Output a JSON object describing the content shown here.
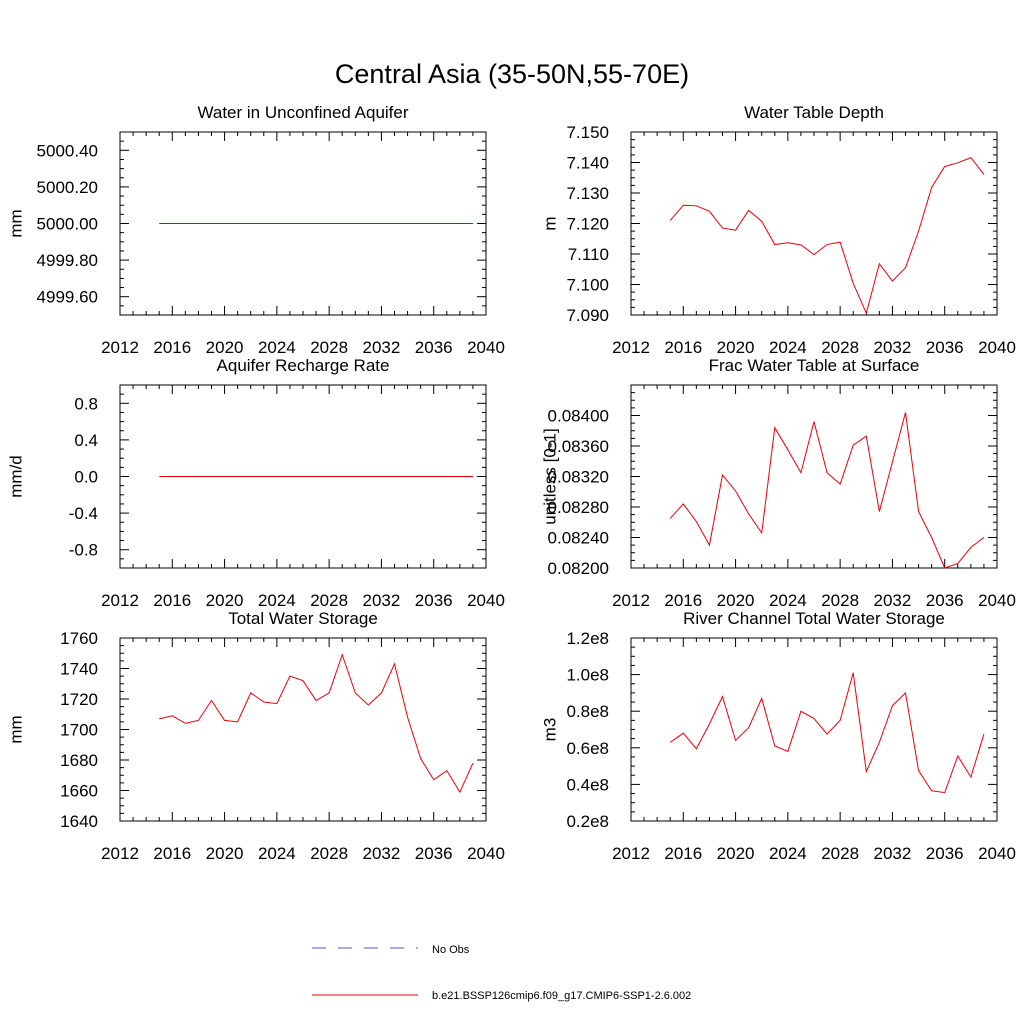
{
  "figure": {
    "title": "Central Asia (35-50N,55-70E)"
  },
  "legend": {
    "obs_label": "No Obs",
    "obs_color": "#5a5ab4",
    "model_label": "b.e21.BSSP126cmip6.f09_g17.CMIP6-SSP1-2.6.002",
    "model_color": "#e8000b"
  },
  "chart_data": [
    {
      "type": "line",
      "title": "Water in Unconfined Aquifer",
      "ylabel": "mm",
      "xlim": [
        2012,
        2040
      ],
      "xticks": [
        2012,
        2016,
        2020,
        2024,
        2028,
        2032,
        2036,
        2040
      ],
      "xtick_labels": [
        "2012",
        "2016",
        "2020",
        "2024",
        "2028",
        "2032",
        "2036",
        "2040"
      ],
      "ylim": [
        4999.5,
        5000.5
      ],
      "yticks": [
        4999.6,
        4999.8,
        5000.0,
        5000.2,
        5000.4
      ],
      "ytick_labels": [
        "4999.60",
        "4999.80",
        "5000.00",
        "5000.20",
        "5000.40"
      ],
      "x": [
        2015,
        2016,
        2017,
        2018,
        2019,
        2020,
        2021,
        2022,
        2023,
        2024,
        2025,
        2026,
        2027,
        2028,
        2029,
        2030,
        2031,
        2032,
        2033,
        2034,
        2035,
        2036,
        2037,
        2038,
        2039
      ],
      "y": [
        5000,
        5000,
        5000,
        5000,
        5000,
        5000,
        5000,
        5000,
        5000,
        5000,
        5000,
        5000,
        5000,
        5000,
        5000,
        5000,
        5000,
        5000,
        5000,
        5000,
        5000,
        5000,
        5000,
        5000,
        5000
      ]
    },
    {
      "type": "line",
      "title": "Water Table Depth",
      "ylabel": "m",
      "xlim": [
        2012,
        2040
      ],
      "xticks": [
        2012,
        2016,
        2020,
        2024,
        2028,
        2032,
        2036,
        2040
      ],
      "xtick_labels": [
        "2012",
        "2016",
        "2020",
        "2024",
        "2028",
        "2032",
        "2036",
        "2040"
      ],
      "ylim": [
        7.09,
        7.15
      ],
      "yticks": [
        7.09,
        7.1,
        7.11,
        7.12,
        7.13,
        7.14,
        7.15
      ],
      "ytick_labels": [
        "7.090",
        "7.100",
        "7.110",
        "7.120",
        "7.130",
        "7.140",
        "7.150"
      ],
      "x": [
        2015,
        2016,
        2017,
        2018,
        2019,
        2020,
        2021,
        2022,
        2023,
        2024,
        2025,
        2026,
        2027,
        2028,
        2029,
        2030,
        2031,
        2032,
        2033,
        2034,
        2035,
        2036,
        2037,
        2038,
        2039
      ],
      "y": [
        7.121,
        7.126,
        7.1258,
        7.124,
        7.1185,
        7.1178,
        7.1243,
        7.1207,
        7.1131,
        7.1137,
        7.113,
        7.1098,
        7.1131,
        7.1139,
        7.1004,
        7.0906,
        7.1068,
        7.1011,
        7.1055,
        7.1175,
        7.1318,
        7.1387,
        7.1399,
        7.1416,
        7.1361
      ]
    },
    {
      "type": "line",
      "title": "Aquifer Recharge Rate",
      "ylabel": "mm/d",
      "xlim": [
        2012,
        2040
      ],
      "xticks": [
        2012,
        2016,
        2020,
        2024,
        2028,
        2032,
        2036,
        2040
      ],
      "xtick_labels": [
        "2012",
        "2016",
        "2020",
        "2024",
        "2028",
        "2032",
        "2036",
        "2040"
      ],
      "ylim": [
        -1.0,
        1.0
      ],
      "yticks": [
        -0.8,
        -0.4,
        0.0,
        0.4,
        0.8
      ],
      "ytick_labels": [
        "-0.8",
        "-0.4",
        "0.0",
        "0.4",
        "0.8"
      ],
      "x": [
        2015,
        2016,
        2017,
        2018,
        2019,
        2020,
        2021,
        2022,
        2023,
        2024,
        2025,
        2026,
        2027,
        2028,
        2029,
        2030,
        2031,
        2032,
        2033,
        2034,
        2035,
        2036,
        2037,
        2038,
        2039
      ],
      "y": [
        0,
        0,
        0,
        0,
        0,
        0,
        0,
        0,
        0,
        0,
        0,
        0,
        0,
        0,
        0,
        0,
        0,
        0,
        0,
        0,
        0,
        0,
        0,
        0,
        0
      ]
    },
    {
      "type": "line",
      "title": "Frac Water Table at Surface",
      "ylabel": "unitless [0-1]",
      "xlim": [
        2012,
        2040
      ],
      "xticks": [
        2012,
        2016,
        2020,
        2024,
        2028,
        2032,
        2036,
        2040
      ],
      "xtick_labels": [
        "2012",
        "2016",
        "2020",
        "2024",
        "2028",
        "2032",
        "2036",
        "2040"
      ],
      "ylim": [
        0.082,
        0.0844
      ],
      "yticks": [
        0.082,
        0.0824,
        0.0828,
        0.0832,
        0.0836,
        0.084
      ],
      "ytick_labels": [
        "0.08200",
        "0.08240",
        "0.08280",
        "0.08320",
        "0.08360",
        "0.08400"
      ],
      "x": [
        2015,
        2016,
        2017,
        2018,
        2019,
        2020,
        2021,
        2022,
        2023,
        2024,
        2025,
        2026,
        2027,
        2028,
        2029,
        2030,
        2031,
        2032,
        2033,
        2034,
        2035,
        2036,
        2037,
        2038,
        2039
      ],
      "y": [
        0.08265,
        0.08284,
        0.08261,
        0.0823,
        0.08322,
        0.08301,
        0.08271,
        0.08246,
        0.08384,
        0.08355,
        0.08325,
        0.08392,
        0.08325,
        0.0831,
        0.08361,
        0.08373,
        0.08274,
        0.08339,
        0.08404,
        0.08274,
        0.0824,
        0.082,
        0.08206,
        0.08227,
        0.0824
      ]
    },
    {
      "type": "line",
      "title": "Total Water Storage",
      "ylabel": "mm",
      "xlim": [
        2012,
        2040
      ],
      "xticks": [
        2012,
        2016,
        2020,
        2024,
        2028,
        2032,
        2036,
        2040
      ],
      "xtick_labels": [
        "2012",
        "2016",
        "2020",
        "2024",
        "2028",
        "2032",
        "2036",
        "2040"
      ],
      "ylim": [
        1640,
        1760
      ],
      "yticks": [
        1640,
        1660,
        1680,
        1700,
        1720,
        1740,
        1760
      ],
      "ytick_labels": [
        "1640",
        "1660",
        "1680",
        "1700",
        "1720",
        "1740",
        "1760"
      ],
      "x": [
        2015,
        2016,
        2017,
        2018,
        2019,
        2020,
        2021,
        2022,
        2023,
        2024,
        2025,
        2026,
        2027,
        2028,
        2029,
        2030,
        2031,
        2032,
        2033,
        2034,
        2035,
        2036,
        2037,
        2038,
        2039
      ],
      "y": [
        1707,
        1709,
        1704,
        1706,
        1719,
        1706,
        1705,
        1724,
        1718,
        1717,
        1735,
        1732,
        1719,
        1724,
        1749,
        1724,
        1716,
        1724,
        1743,
        1708,
        1681,
        1667,
        1673,
        1659,
        1678
      ]
    },
    {
      "type": "line",
      "title": "River Channel Total Water Storage",
      "ylabel": "m3",
      "xlim": [
        2012,
        2040
      ],
      "xticks": [
        2012,
        2016,
        2020,
        2024,
        2028,
        2032,
        2036,
        2040
      ],
      "xtick_labels": [
        "2012",
        "2016",
        "2020",
        "2024",
        "2028",
        "2032",
        "2036",
        "2040"
      ],
      "ylim": [
        20000000,
        120000000
      ],
      "yticks": [
        20000000,
        40000000,
        60000000,
        80000000,
        100000000,
        120000000
      ],
      "ytick_labels": [
        "0.2e8",
        "0.4e8",
        "0.6e8",
        "0.8e8",
        "1.0e8",
        "1.2e8"
      ],
      "x": [
        2015,
        2016,
        2017,
        2018,
        2019,
        2020,
        2021,
        2022,
        2023,
        2024,
        2025,
        2026,
        2027,
        2028,
        2029,
        2030,
        2031,
        2032,
        2033,
        2034,
        2035,
        2036,
        2037,
        2038,
        2039
      ],
      "y": [
        63000000,
        68000000,
        59500000,
        73000000,
        88000000,
        64000000,
        71000000,
        87000000,
        61000000,
        58000000,
        80000000,
        76000000,
        67500000,
        75000000,
        101000000,
        47000000,
        63000000,
        83000000,
        90000000,
        47500000,
        36500000,
        35500000,
        55500000,
        44000000,
        67500000
      ]
    }
  ]
}
